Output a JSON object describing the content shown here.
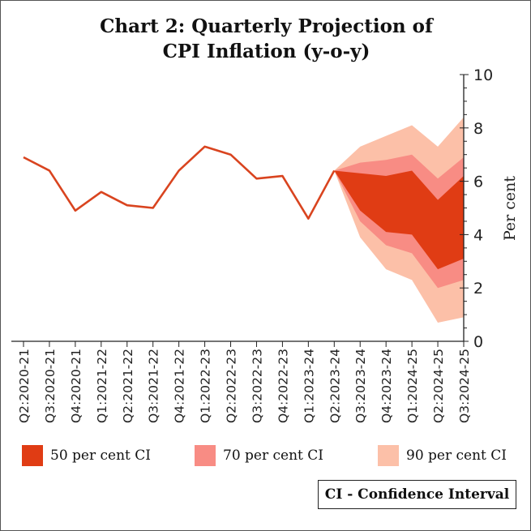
{
  "chart_data": {
    "type": "line",
    "title": "Chart 2: Quarterly Projection of CPI Inflation (y-o-y)",
    "title_lines": [
      "Chart 2: Quarterly Projection of",
      "CPI Inflation (y-o-y)"
    ],
    "ylabel": "Per cent",
    "ylim": [
      0,
      10
    ],
    "yticks": [
      0,
      2,
      4,
      6,
      8,
      10
    ],
    "y_axis_position": "right",
    "grid": false,
    "categories": [
      "Q2:2020-21",
      "Q3:2020-21",
      "Q4:2020-21",
      "Q1:2021-22",
      "Q2:2021-22",
      "Q3:2021-22",
      "Q4:2021-22",
      "Q1:2022-23",
      "Q2:2022-23",
      "Q3:2022-23",
      "Q4:2022-23",
      "Q1:2023-24",
      "Q2:2023-24",
      "Q3:2023-24",
      "Q4:2023-24",
      "Q1:2024-25",
      "Q2:2024-25",
      "Q3:2024-25"
    ],
    "series": [
      {
        "values": [
          6.9,
          6.4,
          4.9,
          5.6,
          5.1,
          5.0,
          6.4,
          7.3,
          7.0,
          6.1,
          6.2,
          4.6,
          6.4,
          null,
          null,
          null,
          null,
          null
        ],
        "color": "#d9441f"
      }
    ],
    "fan": {
      "start_category": "Q2:2023-24",
      "start_value": 6.4,
      "categories": [
        "Q3:2023-24",
        "Q4:2023-24",
        "Q1:2024-25",
        "Q2:2024-25",
        "Q3:2024-25"
      ],
      "bands": [
        {
          "name": "90 per cent CI",
          "color": "#fcc0a8",
          "upper": [
            7.3,
            7.7,
            8.1,
            7.3,
            8.4
          ],
          "lower": [
            3.9,
            2.7,
            2.3,
            0.7,
            0.9
          ]
        },
        {
          "name": "70 per cent CI",
          "color": "#f88c84",
          "upper": [
            6.7,
            6.8,
            7.0,
            6.1,
            6.9
          ],
          "lower": [
            4.5,
            3.6,
            3.3,
            2.0,
            2.3
          ]
        },
        {
          "name": "50 per cent CI",
          "color": "#e03c14",
          "upper": [
            6.3,
            6.2,
            6.4,
            5.3,
            6.2
          ],
          "lower": [
            4.9,
            4.1,
            4.0,
            2.7,
            3.1
          ]
        }
      ]
    },
    "legend": [
      {
        "label": "50 per cent CI",
        "color": "#e03c14"
      },
      {
        "label": "70 per cent CI",
        "color": "#f88c84"
      },
      {
        "label": "90 per cent CI",
        "color": "#fcc0a8"
      }
    ],
    "legend_position": "bottom",
    "note": "CI - Confidence Interval"
  }
}
